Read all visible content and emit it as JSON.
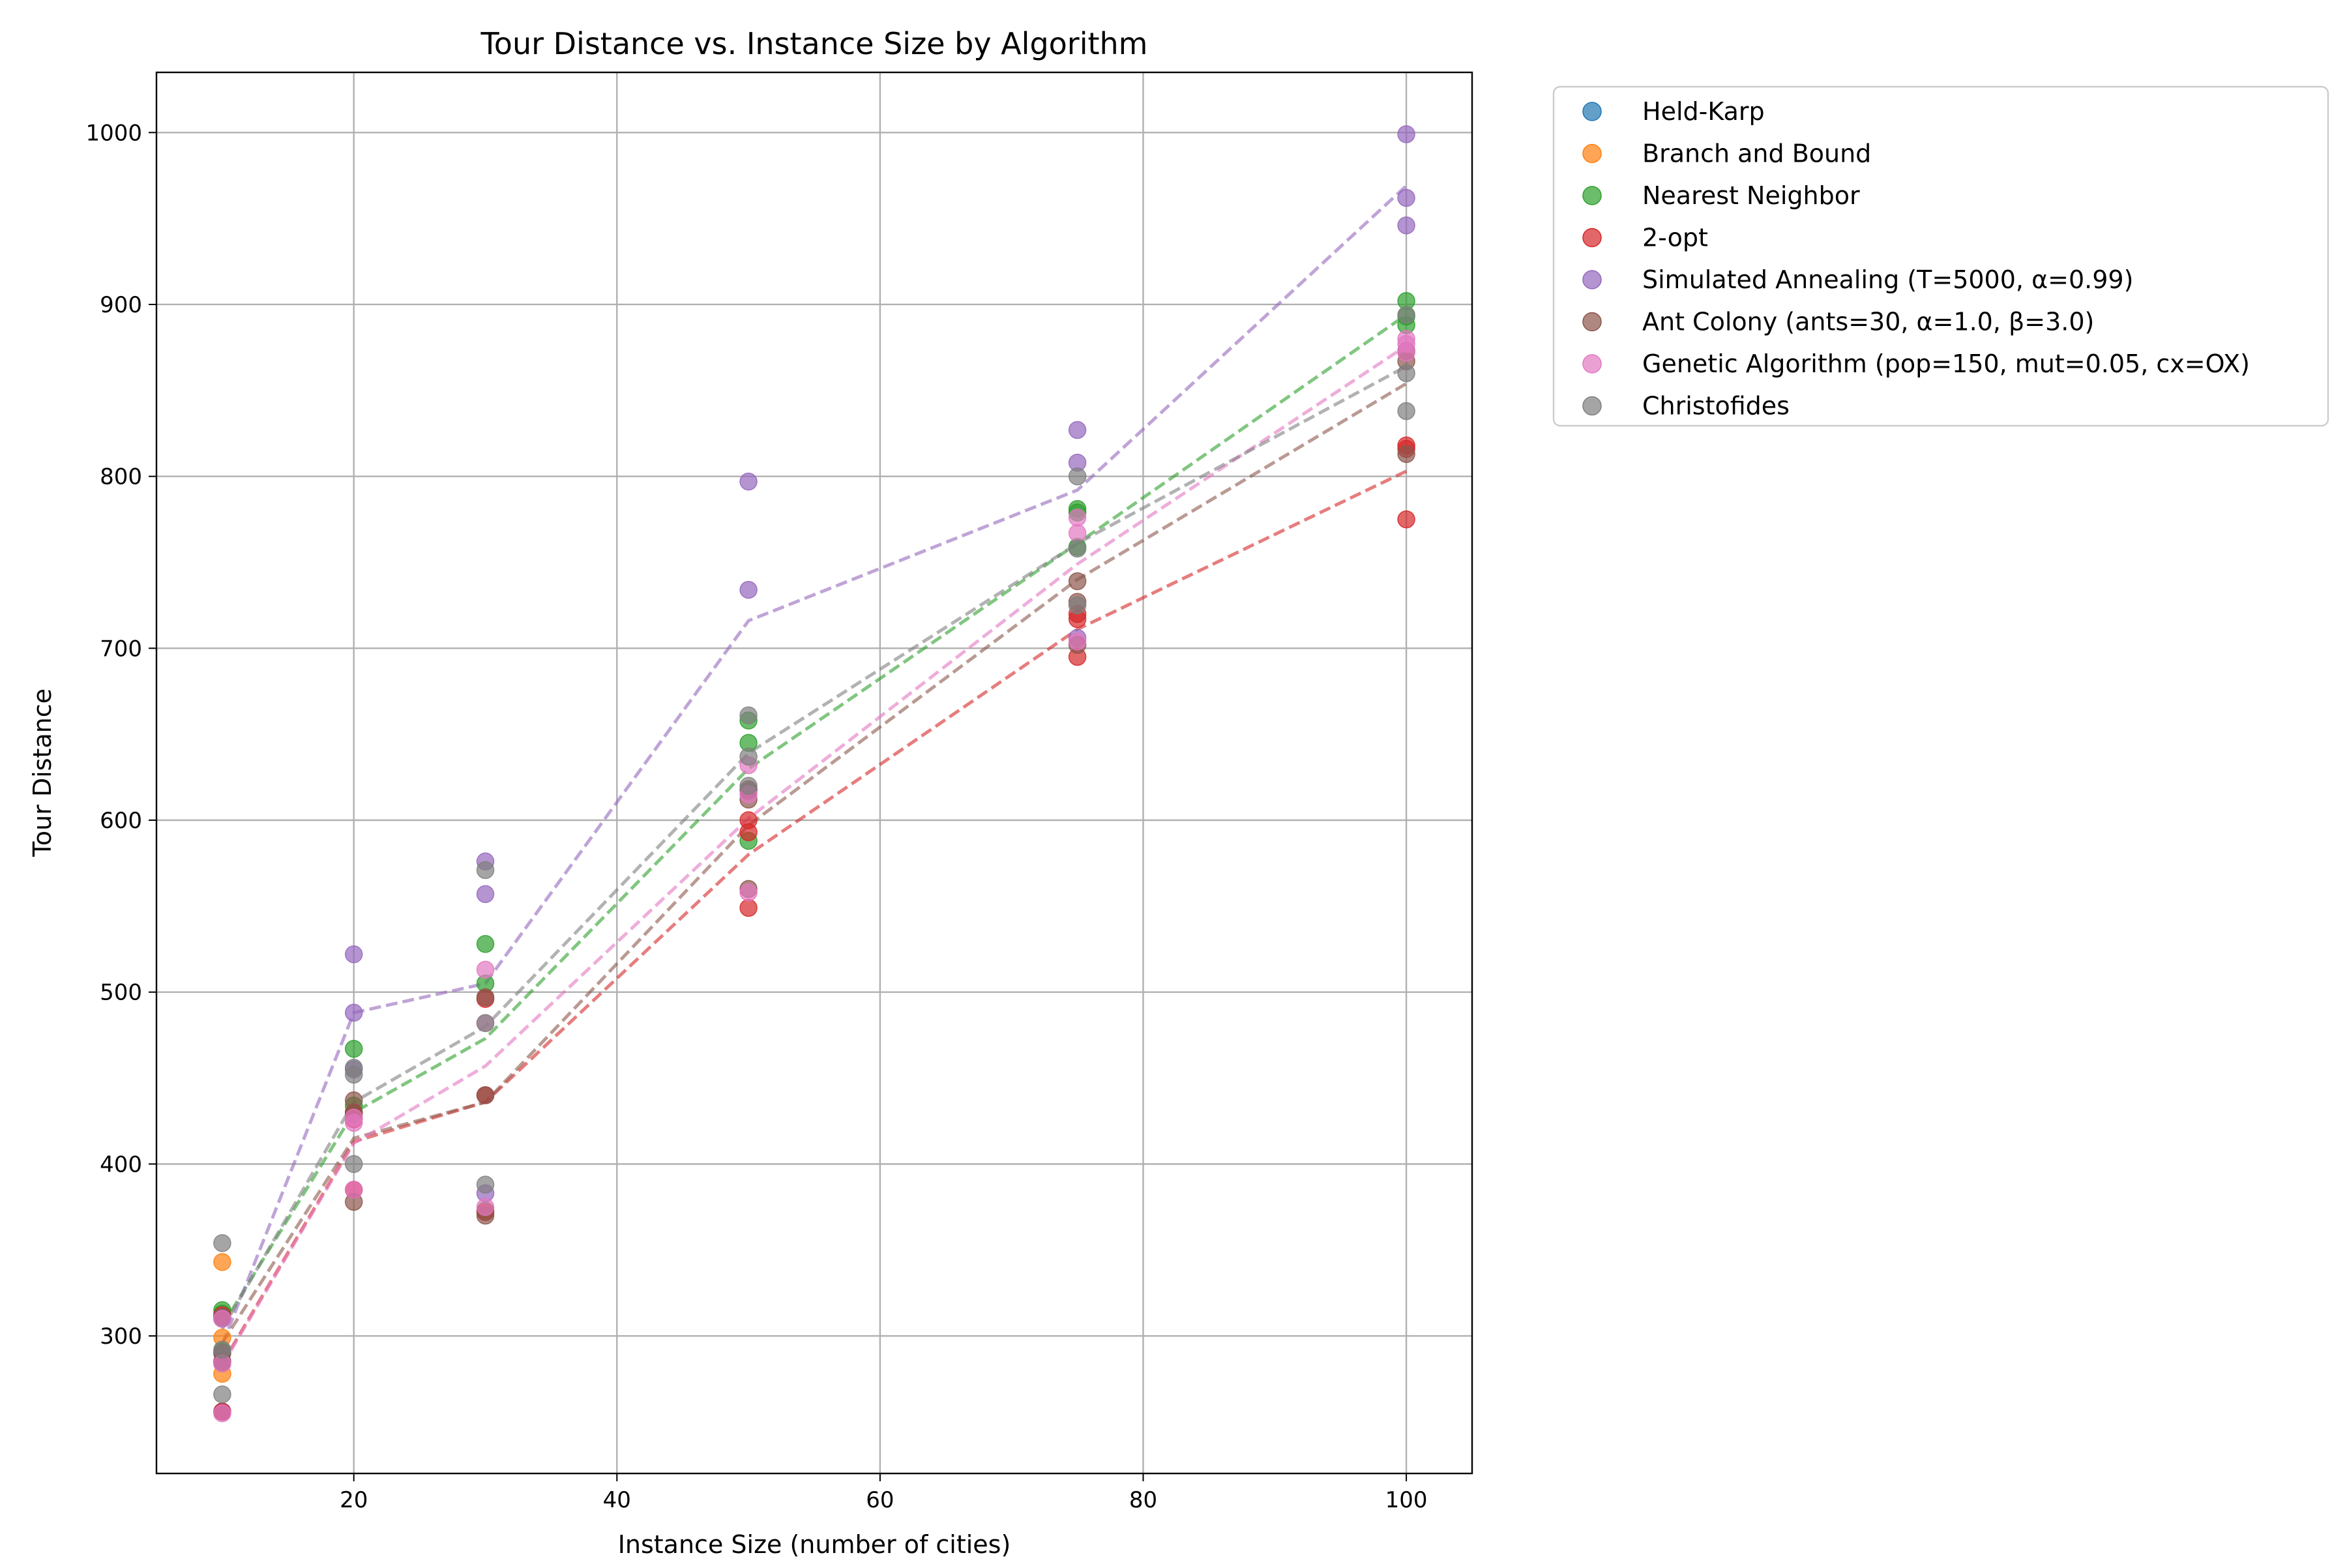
{
  "chart_data": {
    "type": "scatter",
    "title": "Tour Distance vs. Instance Size by Algorithm",
    "xlabel": "Instance Size (number of cities)",
    "ylabel": "Tour Distance",
    "xlim": [
      5,
      105
    ],
    "ylim": [
      220,
      1035
    ],
    "xticks": [
      20,
      40,
      60,
      80,
      100
    ],
    "yticks": [
      300,
      400,
      500,
      600,
      700,
      800,
      900,
      1000
    ],
    "grid": true,
    "legend_position": "outside-top-right",
    "series": [
      {
        "name": "Held-Karp",
        "color": "#1f77b4",
        "points": [
          [
            10,
            284
          ],
          [
            10,
            310
          ],
          [
            10,
            256
          ]
        ],
        "trend": []
      },
      {
        "name": "Branch and Bound",
        "color": "#ff7f0e",
        "points": [
          [
            10,
            343
          ],
          [
            10,
            299
          ],
          [
            10,
            278
          ]
        ],
        "trend": []
      },
      {
        "name": "Nearest Neighbor",
        "color": "#2ca02c",
        "points": [
          [
            10,
            315
          ],
          [
            10,
            313
          ],
          [
            10,
            291
          ],
          [
            20,
            467
          ],
          [
            20,
            434
          ],
          [
            20,
            429
          ],
          [
            30,
            528
          ],
          [
            30,
            505
          ],
          [
            30,
            373
          ],
          [
            50,
            658
          ],
          [
            50,
            645
          ],
          [
            50,
            588
          ],
          [
            75,
            781
          ],
          [
            75,
            779
          ],
          [
            75,
            759
          ],
          [
            100,
            902
          ],
          [
            100,
            888
          ],
          [
            100,
            893
          ]
        ],
        "trend": [
          [
            10,
            306
          ],
          [
            20,
            430
          ],
          [
            30,
            473
          ],
          [
            50,
            630
          ],
          [
            75,
            761
          ],
          [
            100,
            894
          ]
        ]
      },
      {
        "name": "2-opt",
        "color": "#d62728",
        "points": [
          [
            10,
            285
          ],
          [
            10,
            312
          ],
          [
            10,
            256
          ],
          [
            20,
            385
          ],
          [
            20,
            430
          ],
          [
            20,
            426
          ],
          [
            30,
            440
          ],
          [
            30,
            496
          ],
          [
            30,
            372
          ],
          [
            50,
            549
          ],
          [
            50,
            593
          ],
          [
            50,
            600
          ],
          [
            75,
            695
          ],
          [
            75,
            717
          ],
          [
            75,
            720
          ],
          [
            100,
            775
          ],
          [
            100,
            816
          ],
          [
            100,
            818
          ]
        ],
        "trend": [
          [
            10,
            284
          ],
          [
            20,
            413
          ],
          [
            30,
            436
          ],
          [
            50,
            580
          ],
          [
            75,
            711
          ],
          [
            100,
            803
          ]
        ]
      },
      {
        "name": "Simulated Annealing (T=5000, α=0.99)",
        "color": "#9467bd",
        "points": [
          [
            10,
            285
          ],
          [
            10,
            311
          ],
          [
            10,
            290
          ],
          [
            20,
            522
          ],
          [
            20,
            488
          ],
          [
            20,
            455
          ],
          [
            30,
            576
          ],
          [
            30,
            557
          ],
          [
            30,
            383
          ],
          [
            50,
            797
          ],
          [
            50,
            734
          ],
          [
            50,
            617
          ],
          [
            75,
            827
          ],
          [
            75,
            808
          ],
          [
            75,
            706
          ],
          [
            100,
            999
          ],
          [
            100,
            962
          ],
          [
            100,
            946
          ]
        ],
        "trend": [
          [
            10,
            295
          ],
          [
            20,
            488
          ],
          [
            30,
            505
          ],
          [
            50,
            716
          ],
          [
            75,
            792
          ],
          [
            100,
            969
          ]
        ]
      },
      {
        "name": "Ant Colony (ants=30, α=1.0, β=3.0)",
        "color": "#8c564b",
        "points": [
          [
            10,
            285
          ],
          [
            10,
            311
          ],
          [
            10,
            290
          ],
          [
            20,
            378
          ],
          [
            20,
            437
          ],
          [
            20,
            430
          ],
          [
            30,
            440
          ],
          [
            30,
            497
          ],
          [
            30,
            370
          ],
          [
            50,
            560
          ],
          [
            50,
            612
          ],
          [
            50,
            618
          ],
          [
            75,
            739
          ],
          [
            75,
            727
          ],
          [
            75,
            702
          ],
          [
            100,
            813
          ],
          [
            100,
            867
          ],
          [
            100,
            873
          ]
        ],
        "trend": [
          [
            10,
            296
          ],
          [
            20,
            415
          ],
          [
            30,
            436
          ],
          [
            50,
            597
          ],
          [
            75,
            740
          ],
          [
            100,
            854
          ]
        ]
      },
      {
        "name": "Genetic Algorithm (pop=150, mut=0.05, cx=OX)",
        "color": "#e377c2",
        "points": [
          [
            10,
            284
          ],
          [
            10,
            310
          ],
          [
            10,
            255
          ],
          [
            20,
            385
          ],
          [
            20,
            424
          ],
          [
            20,
            427
          ],
          [
            30,
            513
          ],
          [
            30,
            482
          ],
          [
            30,
            375
          ],
          [
            50,
            558
          ],
          [
            50,
            615
          ],
          [
            50,
            632
          ],
          [
            75,
            776
          ],
          [
            75,
            767
          ],
          [
            75,
            704
          ],
          [
            100,
            880
          ],
          [
            100,
            877
          ],
          [
            100,
            872
          ]
        ],
        "trend": [
          [
            10,
            283
          ],
          [
            20,
            412
          ],
          [
            30,
            457
          ],
          [
            50,
            601
          ],
          [
            75,
            749
          ],
          [
            100,
            876
          ]
        ]
      },
      {
        "name": "Christofides",
        "color": "#7f7f7f",
        "points": [
          [
            10,
            354
          ],
          [
            10,
            292
          ],
          [
            10,
            266
          ],
          [
            20,
            456
          ],
          [
            20,
            452
          ],
          [
            20,
            400
          ],
          [
            30,
            571
          ],
          [
            30,
            482
          ],
          [
            30,
            388
          ],
          [
            50,
            661
          ],
          [
            50,
            637
          ],
          [
            50,
            620
          ],
          [
            75,
            800
          ],
          [
            75,
            758
          ],
          [
            75,
            725
          ],
          [
            100,
            894
          ],
          [
            100,
            860
          ],
          [
            100,
            838
          ]
        ],
        "trend": [
          [
            10,
            304
          ],
          [
            20,
            436
          ],
          [
            30,
            480
          ],
          [
            50,
            639
          ],
          [
            75,
            761
          ],
          [
            100,
            864
          ]
        ]
      }
    ]
  }
}
